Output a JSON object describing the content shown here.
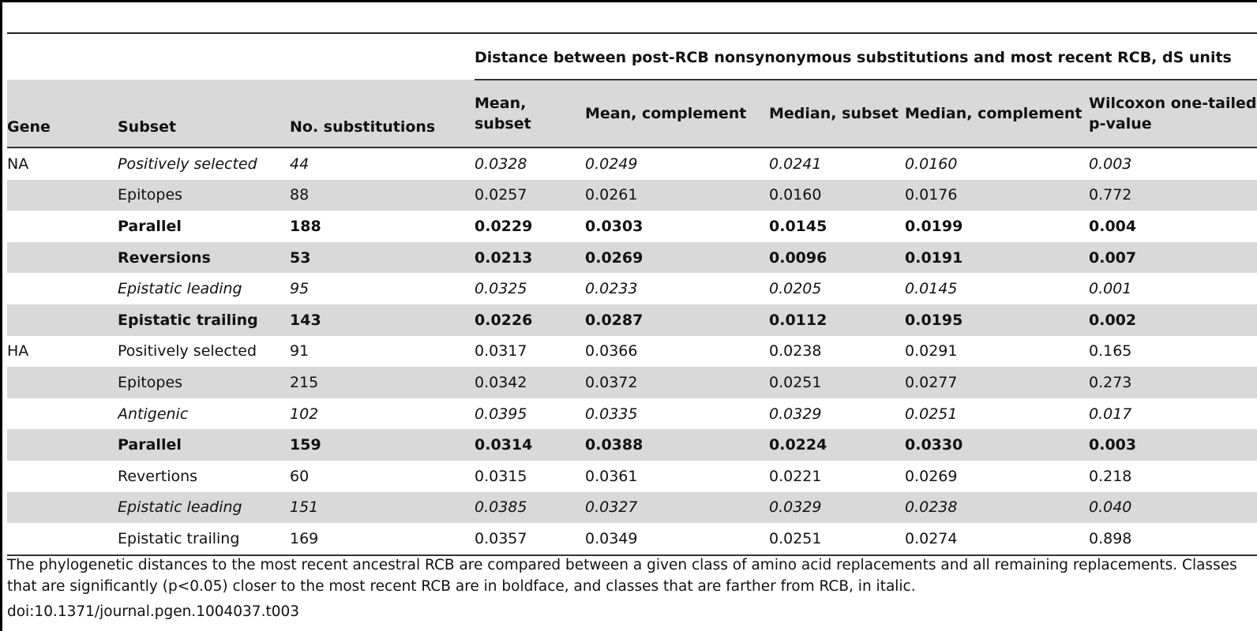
{
  "table": {
    "group_header": "Distance between post-RCB nonsynonymous substitutions and most recent RCB, dS units",
    "columns": [
      "Gene",
      "Subset",
      "No. substitutions",
      "Mean, subset",
      "Mean, complement",
      "Median, subset",
      "Median, complement",
      "Wilcoxon one-tailed p-value"
    ],
    "rows": [
      {
        "gene": "NA",
        "subset": "Positively selected",
        "n": "44",
        "mean_subset": "0.0328",
        "mean_complement": "0.0249",
        "median_subset": "0.0241",
        "median_complement": "0.0160",
        "p": "0.003",
        "style": "italic"
      },
      {
        "gene": "",
        "subset": "Epitopes",
        "n": "88",
        "mean_subset": "0.0257",
        "mean_complement": "0.0261",
        "median_subset": "0.0160",
        "median_complement": "0.0176",
        "p": "0.772",
        "style": "normal"
      },
      {
        "gene": "",
        "subset": "Parallel",
        "n": "188",
        "mean_subset": "0.0229",
        "mean_complement": "0.0303",
        "median_subset": "0.0145",
        "median_complement": "0.0199",
        "p": "0.004",
        "style": "bold"
      },
      {
        "gene": "",
        "subset": "Reversions",
        "n": "53",
        "mean_subset": "0.0213",
        "mean_complement": "0.0269",
        "median_subset": "0.0096",
        "median_complement": "0.0191",
        "p": "0.007",
        "style": "bold"
      },
      {
        "gene": "",
        "subset": "Epistatic leading",
        "n": "95",
        "mean_subset": "0.0325",
        "mean_complement": "0.0233",
        "median_subset": "0.0205",
        "median_complement": "0.0145",
        "p": "0.001",
        "style": "italic"
      },
      {
        "gene": "",
        "subset": "Epistatic trailing",
        "n": "143",
        "mean_subset": "0.0226",
        "mean_complement": "0.0287",
        "median_subset": "0.0112",
        "median_complement": "0.0195",
        "p": "0.002",
        "style": "bold"
      },
      {
        "gene": "HA",
        "subset": "Positively selected",
        "n": "91",
        "mean_subset": "0.0317",
        "mean_complement": "0.0366",
        "median_subset": "0.0238",
        "median_complement": "0.0291",
        "p": "0.165",
        "style": "normal"
      },
      {
        "gene": "",
        "subset": "Epitopes",
        "n": "215",
        "mean_subset": "0.0342",
        "mean_complement": "0.0372",
        "median_subset": "0.0251",
        "median_complement": "0.0277",
        "p": "0.273",
        "style": "normal"
      },
      {
        "gene": "",
        "subset": "Antigenic",
        "n": "102",
        "mean_subset": "0.0395",
        "mean_complement": "0.0335",
        "median_subset": "0.0329",
        "median_complement": "0.0251",
        "p": "0.017",
        "style": "italic"
      },
      {
        "gene": "",
        "subset": "Parallel",
        "n": "159",
        "mean_subset": "0.0314",
        "mean_complement": "0.0388",
        "median_subset": "0.0224",
        "median_complement": "0.0330",
        "p": "0.003",
        "style": "bold"
      },
      {
        "gene": "",
        "subset": "Revertions",
        "n": "60",
        "mean_subset": "0.0315",
        "mean_complement": "0.0361",
        "median_subset": "0.0221",
        "median_complement": "0.0269",
        "p": "0.218",
        "style": "normal"
      },
      {
        "gene": "",
        "subset": "Epistatic leading",
        "n": "151",
        "mean_subset": "0.0385",
        "mean_complement": "0.0327",
        "median_subset": "0.0329",
        "median_complement": "0.0238",
        "p": "0.040",
        "style": "italic"
      },
      {
        "gene": "",
        "subset": "Epistatic trailing",
        "n": "169",
        "mean_subset": "0.0357",
        "mean_complement": "0.0349",
        "median_subset": "0.0251",
        "median_complement": "0.0274",
        "p": "0.898",
        "style": "normal"
      }
    ]
  },
  "footnote": "The phylogenetic distances to the most recent ancestral RCB are compared between a given class of amino acid replacements and all remaining replacements. Classes that are significantly (p<0.05) closer to the most recent RCB are in boldface, and classes that are farther from RCB, in italic.",
  "doi": "doi:10.1371/journal.pgen.1004037.t003",
  "colors": {
    "shade": "#d9d9d9",
    "rule": "#333333",
    "text": "#111111"
  }
}
